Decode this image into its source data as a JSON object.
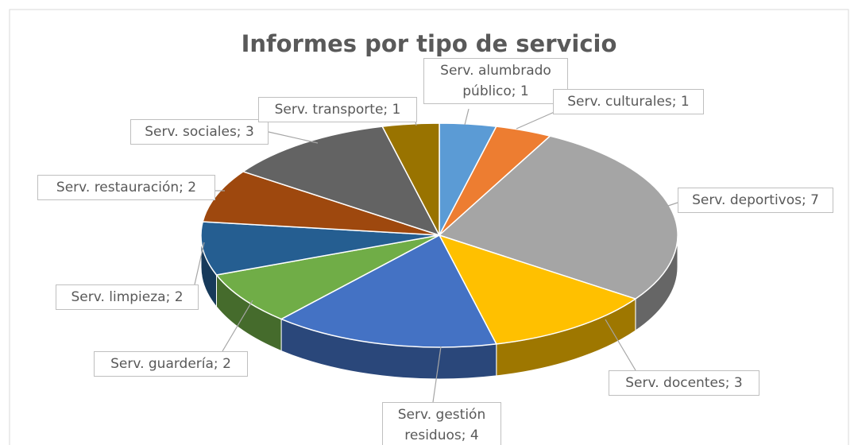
{
  "chart_data": {
    "type": "pie",
    "title": "Informes por tipo de servicio",
    "labels": [
      "Serv. alumbrado público; 1",
      "Serv. culturales; 1",
      "Serv. deportivos; 7",
      "Serv. docentes; 3",
      "Serv. gestión residuos; 4",
      "Serv. guardería; 2",
      "Serv. limpieza; 2",
      "Serv. restauración; 2",
      "Serv. sociales; 3",
      "Serv. transporte; 1"
    ],
    "values": [
      1,
      1,
      7,
      3,
      4,
      2,
      2,
      2,
      3,
      1
    ],
    "colors": [
      "#5b9bd5",
      "#ed7d31",
      "#a5a5a5",
      "#ffc000",
      "#4472c4",
      "#70ad47",
      "#255e91",
      "#9e480e",
      "#636363",
      "#997300"
    ]
  }
}
